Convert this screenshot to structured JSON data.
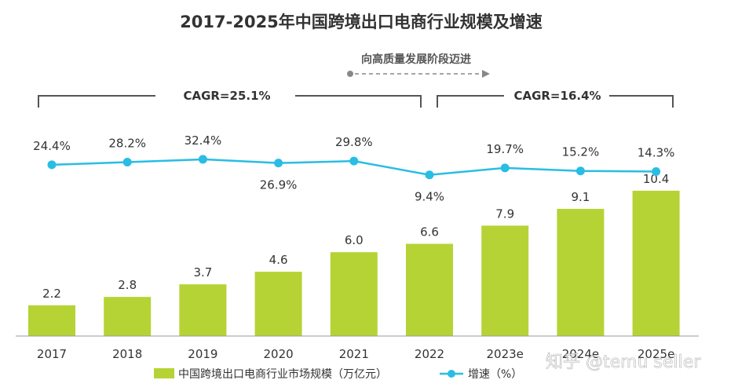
{
  "chart_data": {
    "type": "bar",
    "title": "2017-2025年中国跨境出口电商行业规模及增速",
    "categories": [
      "2017",
      "2018",
      "2019",
      "2020",
      "2021",
      "2022",
      "2023e",
      "2024e",
      "2025e"
    ],
    "series": [
      {
        "name": "中国跨境出口电商行业市场规模（万亿元）",
        "type": "bar",
        "values": [
          2.2,
          2.8,
          3.7,
          4.6,
          6.0,
          6.6,
          7.9,
          9.1,
          10.4
        ],
        "labels": [
          "2.2",
          "2.8",
          "3.7",
          "4.6",
          "6.0",
          "6.6",
          "7.9",
          "9.1",
          "10.4"
        ],
        "color": "#b5d334"
      },
      {
        "name": "增速（%）",
        "type": "line",
        "values": [
          24.4,
          28.2,
          32.4,
          26.9,
          29.8,
          9.4,
          19.7,
          15.2,
          14.3
        ],
        "labels": [
          "24.4%",
          "28.2%",
          "32.4%",
          "26.9%",
          "29.8%",
          "9.4%",
          "19.7%",
          "15.2%",
          "14.3%"
        ],
        "color": "#29bde4"
      }
    ],
    "annotations": {
      "arrow_text": "向高质量发展阶段迈进",
      "cagr_left": "CAGR=25.1%",
      "cagr_right": "CAGR=16.4%"
    },
    "legend_position": "bottom",
    "grid": false
  },
  "watermark": "知乎 @temu seller",
  "colors": {
    "bar": "#b5d334",
    "line": "#29bde4",
    "bracket": "#555555",
    "axis": "#999999"
  }
}
